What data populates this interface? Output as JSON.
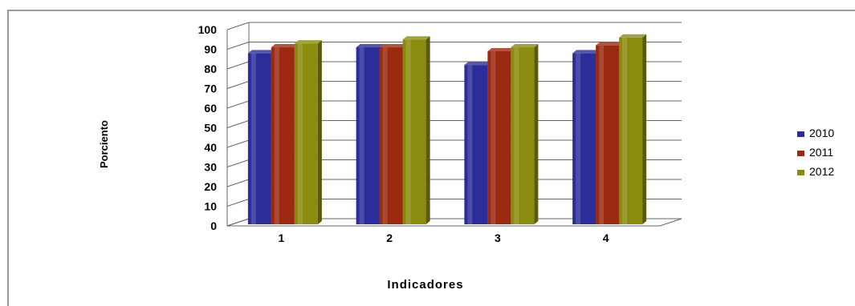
{
  "chart_data": {
    "type": "bar",
    "categories": [
      "1",
      "2",
      "3",
      "4"
    ],
    "series": [
      {
        "name": "2010",
        "values": [
          88,
          91,
          82,
          88
        ],
        "color": "#2b2e9a"
      },
      {
        "name": "2011",
        "values": [
          91,
          91,
          89,
          92
        ],
        "color": "#9b2a10"
      },
      {
        "name": "2012",
        "values": [
          93,
          95,
          91,
          96
        ],
        "color": "#8a8c10"
      }
    ],
    "title": "",
    "xlabel": "Indicadores",
    "ylabel": "Porciento",
    "ylim": [
      0,
      100
    ],
    "yticks": [
      "0",
      "10",
      "20",
      "30",
      "40",
      "50",
      "60",
      "70",
      "80",
      "90",
      "100"
    ],
    "grid": true,
    "legend_position": "right",
    "style": "3d"
  }
}
